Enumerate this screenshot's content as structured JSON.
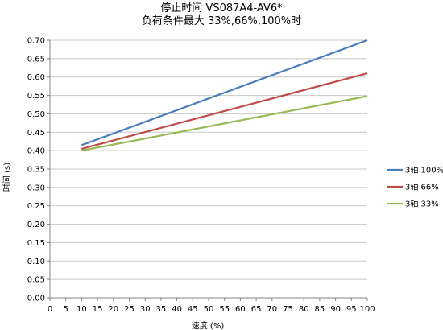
{
  "chart_data": {
    "type": "line",
    "title": "停止时间 VS087A4-AV6*",
    "subtitle": "负荷条件最大 33%,66%,100%时",
    "xlabel": "速度 (%)",
    "ylabel": "时间 (s)",
    "xlim": [
      0,
      100
    ],
    "ylim": [
      0,
      0.7
    ],
    "xticks": [
      "0",
      "5",
      "10",
      "15",
      "20",
      "25",
      "30",
      "35",
      "40",
      "45",
      "50",
      "55",
      "60",
      "65",
      "70",
      "75",
      "80",
      "85",
      "90",
      "95",
      "100"
    ],
    "yticks": [
      "0.00",
      "0.05",
      "0.10",
      "0.15",
      "0.20",
      "0.25",
      "0.30",
      "0.35",
      "0.40",
      "0.45",
      "0.50",
      "0.55",
      "0.60",
      "0.65",
      "0.70"
    ],
    "grid": "horizontal",
    "legend_position": "right",
    "series": [
      {
        "name": "3轴 100%",
        "color": "#4a7ebb",
        "x": [
          10,
          100
        ],
        "y": [
          0.415,
          0.7
        ]
      },
      {
        "name": "3轴 66%",
        "color": "#be4b48",
        "x": [
          10,
          100
        ],
        "y": [
          0.405,
          0.61
        ]
      },
      {
        "name": "3轴 33%",
        "color": "#98b954",
        "x": [
          10,
          100
        ],
        "y": [
          0.4,
          0.548
        ]
      }
    ]
  }
}
